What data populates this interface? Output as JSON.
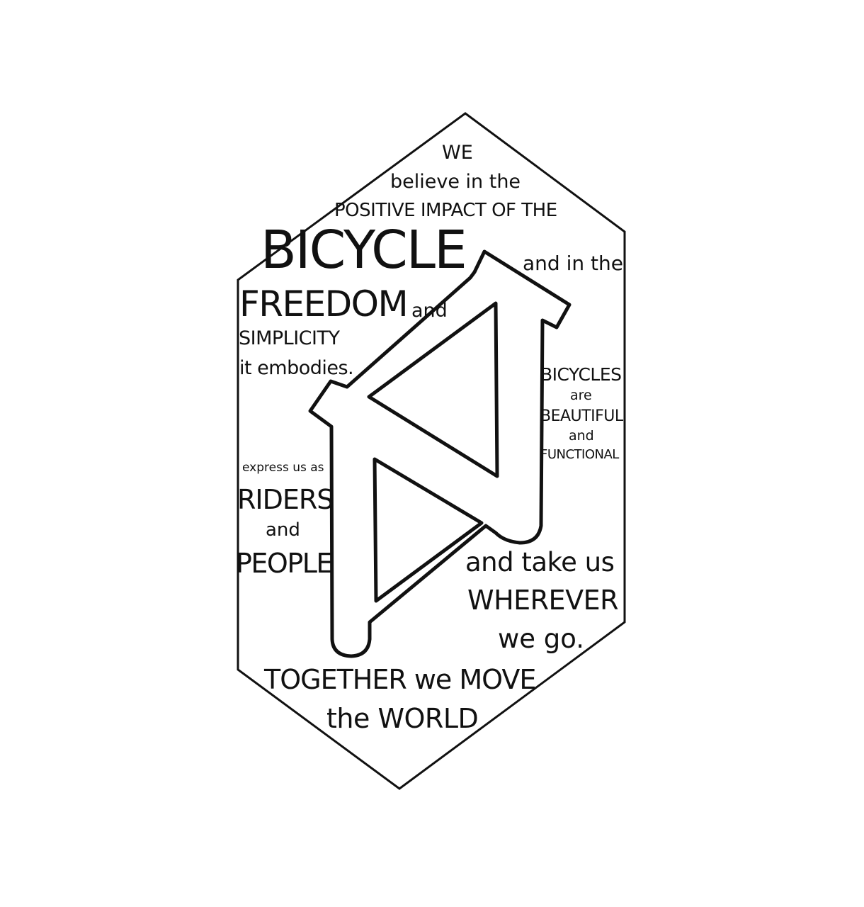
{
  "poster": {
    "lines": {
      "we": "WE",
      "believe": "believe in the",
      "positive": "POSITIVE IMPACT OF THE",
      "bicycle": "BICYCLE",
      "and_in_the": "and in the",
      "freedom": "FREEDOM",
      "and1": "and",
      "simplicity": "SIMPLICITY",
      "embodies": "it embodies.",
      "bicycles": "BICYCLES",
      "are": "are",
      "beautiful": "BEAUTIFUL",
      "and2": "and",
      "functional": "FUNCTIONAL",
      "express": "express us as",
      "riders": "RIDERS",
      "and3": "and",
      "people": "PEOPLE",
      "take_us": "and take us",
      "wherever": "WHEREVER",
      "we_go": "we go.",
      "together": "TOGETHER we MOVE",
      "world": "the WORLD"
    },
    "colors": {
      "ink": "#111111",
      "background": "#ffffff"
    },
    "graphic": "bicycle-frame-outline inside a hexagon"
  }
}
